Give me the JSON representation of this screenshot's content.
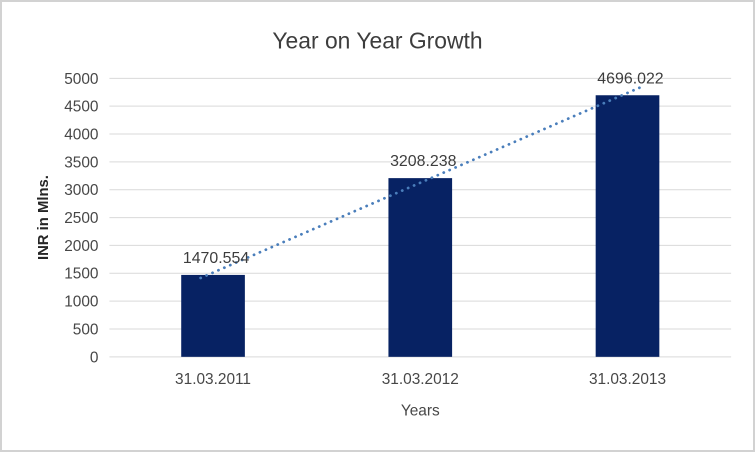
{
  "chart_data": {
    "type": "bar",
    "title": "Year on Year Growth",
    "xlabel": "Years",
    "ylabel": "INR in Mlns.",
    "categories": [
      "31.03.2011",
      "31.03.2012",
      "31.03.2013"
    ],
    "values": [
      1470.554,
      3208.238,
      4696.022
    ],
    "data_labels": [
      "1470.554",
      "3208.238",
      "4696.022"
    ],
    "ylim": [
      0,
      5000
    ],
    "ytick_step": 500,
    "ytick_labels": [
      "0",
      "500",
      "1000",
      "1500",
      "2000",
      "2500",
      "3000",
      "3500",
      "4000",
      "4500",
      "5000"
    ],
    "grid": true,
    "legend": "none",
    "trendline": {
      "type": "linear",
      "style": "dotted",
      "applies_to_series_values": [
        1470.554,
        3208.238,
        4696.022
      ]
    },
    "colors": {
      "bar": "#072263",
      "trendline": "#4a7ebb",
      "gridline": "#d9d9d9",
      "title_text": "#3d3d3d",
      "axis_text": "#474747",
      "data_label_text": "#3d3d3d",
      "background": "#ffffff",
      "border": "#d2d2d2"
    }
  }
}
